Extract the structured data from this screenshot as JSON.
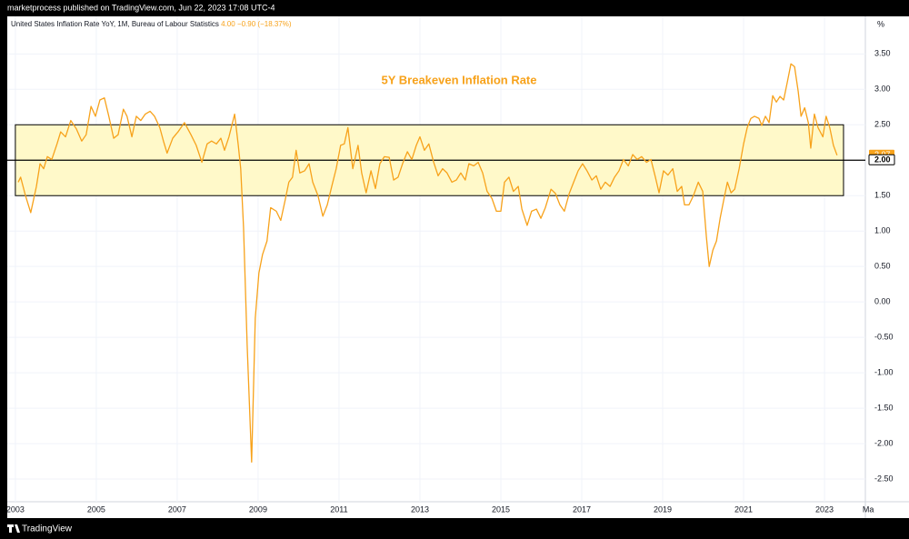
{
  "header": "marketprocess published on TradingView.com, Jun 22, 2023 17:08 UTC-4",
  "footer": "TradingView",
  "chart_data": {
    "type": "line",
    "legend_value": "4.00",
    "legend_change": "−0.90 (−18.37%)",
    "annotation": "5Y Breakeven Inflation Rate",
    "y_unit": "%",
    "xlim": [
      2002.8,
      2024.01
    ],
    "ylim": [
      -2.82,
      4.03
    ],
    "xticks": [
      2003,
      2005,
      2007,
      2009,
      2011,
      2013,
      2015,
      2017,
      2019,
      2021,
      2023,
      {
        "value": 2024.08,
        "label": "Ma"
      }
    ],
    "yticks": [
      {
        "value": 3.5,
        "label": "3.50"
      },
      {
        "value": 3,
        "label": "3.00"
      },
      {
        "value": 2.5,
        "label": "2.50"
      },
      {
        "value": 1.5,
        "label": "1.50"
      },
      {
        "value": 1,
        "label": "1.00"
      },
      {
        "value": 0.5,
        "label": "0.50"
      },
      {
        "value": 0,
        "label": "0.00"
      },
      {
        "value": -0.5,
        "label": "-0.50"
      },
      {
        "value": -1,
        "label": "-1.00"
      },
      {
        "value": -1.5,
        "label": "-1.50"
      },
      {
        "value": -2,
        "label": "-2.00"
      },
      {
        "value": -2.5,
        "label": "-2.50"
      }
    ],
    "grid": true,
    "band": [
      1.5,
      2.5
    ],
    "band_x": [
      2003.0,
      2023.47
    ],
    "band_color": "#fff9c9",
    "hline": {
      "value": 2,
      "label": "2.00"
    },
    "last_value_label": "2.07",
    "x": [
      2003.07,
      2003.13,
      2003.25,
      2003.38,
      2003.52,
      2003.61,
      2003.7,
      2003.79,
      2003.9,
      2004.03,
      2004.12,
      2004.24,
      2004.37,
      2004.51,
      2004.64,
      2004.75,
      2004.87,
      2004.98,
      2005.09,
      2005.2,
      2005.31,
      2005.43,
      2005.54,
      2005.67,
      2005.76,
      2005.88,
      2005.99,
      2006.1,
      2006.21,
      2006.33,
      2006.44,
      2006.57,
      2006.66,
      2006.75,
      2006.89,
      2007.02,
      2007.18,
      2007.34,
      2007.47,
      2007.61,
      2007.74,
      2007.85,
      2007.97,
      2008.08,
      2008.17,
      2008.28,
      2008.42,
      2008.51,
      2008.57,
      2008.64,
      2008.73,
      2008.84,
      2008.93,
      2009.02,
      2009.11,
      2009.22,
      2009.31,
      2009.45,
      2009.56,
      2009.67,
      2009.76,
      2009.85,
      2009.94,
      2010.03,
      2010.15,
      2010.26,
      2010.35,
      2010.48,
      2010.6,
      2010.71,
      2010.82,
      2010.93,
      2011.04,
      2011.13,
      2011.22,
      2011.34,
      2011.47,
      2011.56,
      2011.67,
      2011.79,
      2011.9,
      2012.01,
      2012.12,
      2012.24,
      2012.35,
      2012.46,
      2012.57,
      2012.69,
      2012.8,
      2012.91,
      2013.0,
      2013.11,
      2013.22,
      2013.34,
      2013.45,
      2013.56,
      2013.67,
      2013.79,
      2013.9,
      2014.01,
      2014.12,
      2014.21,
      2014.33,
      2014.44,
      2014.55,
      2014.66,
      2014.78,
      2014.89,
      2015.0,
      2015.09,
      2015.2,
      2015.31,
      2015.43,
      2015.52,
      2015.65,
      2015.76,
      2015.88,
      2015.99,
      2016.1,
      2016.24,
      2016.35,
      2016.46,
      2016.57,
      2016.69,
      2016.8,
      2016.91,
      2017.02,
      2017.13,
      2017.25,
      2017.36,
      2017.47,
      2017.58,
      2017.7,
      2017.81,
      2017.92,
      2018.03,
      2018.15,
      2018.26,
      2018.37,
      2018.48,
      2018.6,
      2018.71,
      2018.82,
      2018.91,
      2019.02,
      2019.13,
      2019.25,
      2019.36,
      2019.47,
      2019.54,
      2019.65,
      2019.76,
      2019.88,
      2019.99,
      2020.08,
      2020.15,
      2020.24,
      2020.33,
      2020.42,
      2020.51,
      2020.6,
      2020.69,
      2020.78,
      2020.89,
      2021.0,
      2021.09,
      2021.18,
      2021.27,
      2021.38,
      2021.45,
      2021.54,
      2021.63,
      2021.72,
      2021.81,
      2021.9,
      2021.99,
      2022.08,
      2022.17,
      2022.26,
      2022.35,
      2022.42,
      2022.51,
      2022.6,
      2022.66,
      2022.75,
      2022.84,
      2022.96,
      2023.04,
      2023.13,
      2023.22,
      2023.31
    ],
    "series": [
      {
        "name": "United States Inflation Rate YoY, 1M, Bureau of Labour Statistics",
        "color": "#f7a21b",
        "values": [
          1.69,
          1.76,
          1.5,
          1.26,
          1.63,
          1.95,
          1.88,
          2.05,
          2.01,
          2.23,
          2.4,
          2.33,
          2.56,
          2.44,
          2.27,
          2.36,
          2.76,
          2.62,
          2.85,
          2.88,
          2.62,
          2.31,
          2.36,
          2.72,
          2.62,
          2.33,
          2.62,
          2.56,
          2.65,
          2.69,
          2.62,
          2.46,
          2.27,
          2.1,
          2.31,
          2.4,
          2.53,
          2.36,
          2.21,
          1.97,
          2.23,
          2.27,
          2.23,
          2.31,
          2.14,
          2.33,
          2.65,
          2.21,
          1.88,
          1.05,
          -0.62,
          -2.26,
          -0.23,
          0.41,
          0.67,
          0.86,
          1.33,
          1.28,
          1.15,
          1.44,
          1.69,
          1.76,
          2.14,
          1.82,
          1.85,
          1.95,
          1.69,
          1.5,
          1.21,
          1.37,
          1.63,
          1.88,
          2.21,
          2.23,
          2.46,
          1.88,
          2.21,
          1.82,
          1.54,
          1.85,
          1.6,
          1.95,
          2.05,
          2.04,
          1.72,
          1.76,
          1.95,
          2.12,
          2.01,
          2.21,
          2.33,
          2.14,
          2.23,
          1.97,
          1.78,
          1.88,
          1.82,
          1.69,
          1.72,
          1.82,
          1.72,
          1.95,
          1.92,
          1.97,
          1.82,
          1.56,
          1.46,
          1.28,
          1.28,
          1.69,
          1.76,
          1.56,
          1.63,
          1.31,
          1.08,
          1.28,
          1.31,
          1.18,
          1.33,
          1.59,
          1.53,
          1.37,
          1.28,
          1.53,
          1.69,
          1.85,
          1.95,
          1.85,
          1.72,
          1.78,
          1.59,
          1.69,
          1.63,
          1.76,
          1.85,
          2.01,
          1.92,
          2.08,
          2.01,
          2.05,
          1.97,
          2.01,
          1.76,
          1.54,
          1.85,
          1.79,
          1.88,
          1.56,
          1.63,
          1.37,
          1.37,
          1.5,
          1.69,
          1.56,
          0.92,
          0.5,
          0.73,
          0.86,
          1.18,
          1.44,
          1.69,
          1.54,
          1.59,
          1.88,
          2.23,
          2.46,
          2.59,
          2.62,
          2.59,
          2.49,
          2.62,
          2.53,
          2.91,
          2.82,
          2.9,
          2.85,
          3.1,
          3.36,
          3.32,
          2.97,
          2.62,
          2.74,
          2.53,
          2.17,
          2.65,
          2.46,
          2.33,
          2.62,
          2.46,
          2.21,
          2.07
        ]
      }
    ]
  }
}
